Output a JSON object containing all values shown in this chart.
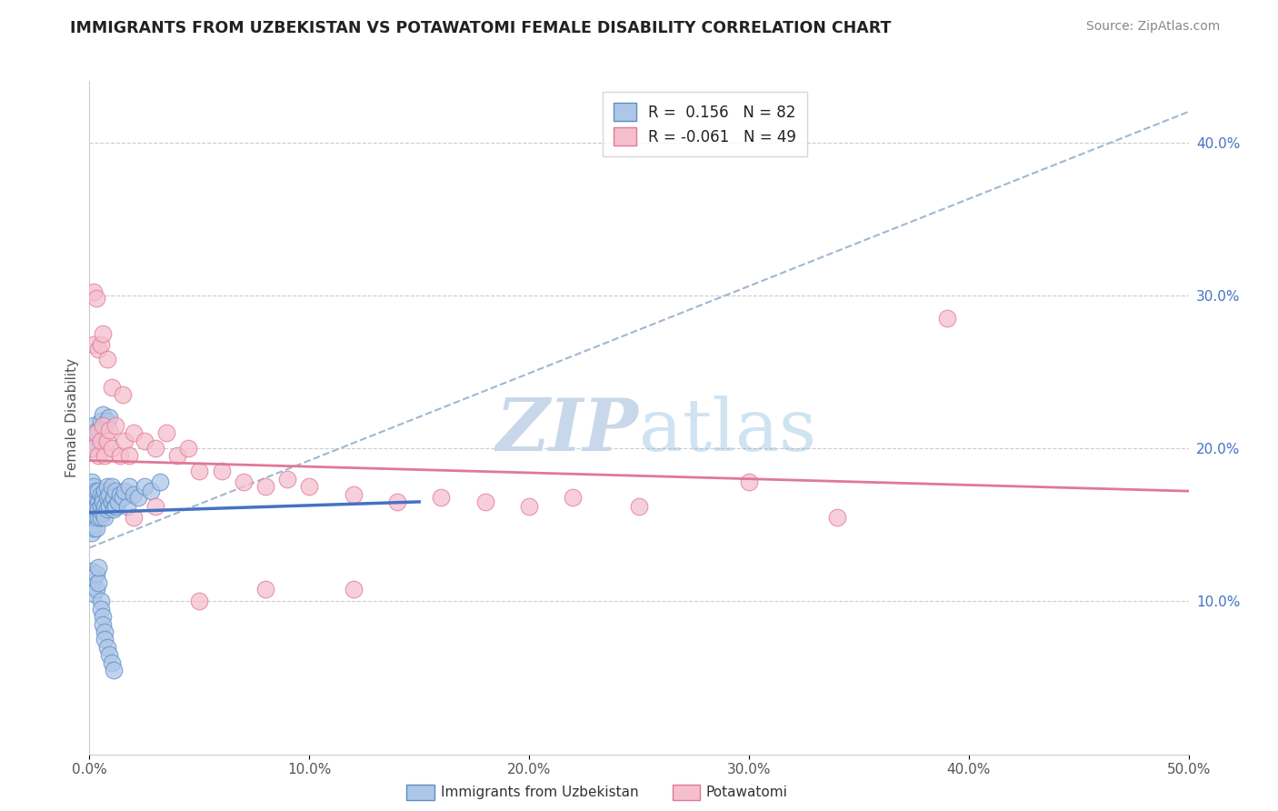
{
  "title": "IMMIGRANTS FROM UZBEKISTAN VS POTAWATOMI FEMALE DISABILITY CORRELATION CHART",
  "source_text": "Source: ZipAtlas.com",
  "ylabel": "Female Disability",
  "xlim": [
    0.0,
    0.5
  ],
  "ylim": [
    0.0,
    0.44
  ],
  "xticks": [
    0.0,
    0.1,
    0.2,
    0.3,
    0.4,
    0.5
  ],
  "xticklabels": [
    "0.0%",
    "10.0%",
    "20.0%",
    "30.0%",
    "40.0%",
    "50.0%"
  ],
  "yticks_right": [
    0.1,
    0.2,
    0.3,
    0.4
  ],
  "yticklabels_right": [
    "10.0%",
    "20.0%",
    "30.0%",
    "40.0%"
  ],
  "R1": 0.156,
  "N1": 82,
  "R2": -0.061,
  "N2": 49,
  "color_blue_fill": "#aec6e8",
  "color_blue_edge": "#5b8ec4",
  "color_pink_fill": "#f5bfce",
  "color_pink_edge": "#e07898",
  "color_blue_line": "#4472c4",
  "color_pink_line": "#e07898",
  "color_dashed": "#a0b8d0",
  "watermark_color": "#c8d8ea",
  "legend_label1": "Immigrants from Uzbekistan",
  "legend_label2": "Potawatomi",
  "blue_trend_x0": 0.0,
  "blue_trend_y0": 0.158,
  "blue_trend_x1": 0.15,
  "blue_trend_y1": 0.165,
  "pink_trend_x0": 0.0,
  "pink_trend_y0": 0.192,
  "pink_trend_x1": 0.5,
  "pink_trend_y1": 0.172,
  "dash_trend_x0": 0.0,
  "dash_trend_y0": 0.135,
  "dash_trend_x1": 0.5,
  "dash_trend_y1": 0.42,
  "uzbek_x": [
    0.001,
    0.001,
    0.001,
    0.001,
    0.001,
    0.001,
    0.001,
    0.001,
    0.002,
    0.002,
    0.002,
    0.002,
    0.002,
    0.002,
    0.003,
    0.003,
    0.003,
    0.003,
    0.003,
    0.004,
    0.004,
    0.004,
    0.004,
    0.005,
    0.005,
    0.005,
    0.006,
    0.006,
    0.006,
    0.007,
    0.007,
    0.007,
    0.008,
    0.008,
    0.008,
    0.009,
    0.009,
    0.01,
    0.01,
    0.011,
    0.011,
    0.012,
    0.012,
    0.013,
    0.014,
    0.015,
    0.016,
    0.017,
    0.018,
    0.02,
    0.022,
    0.025,
    0.028,
    0.032,
    0.001,
    0.001,
    0.002,
    0.002,
    0.003,
    0.003,
    0.004,
    0.004,
    0.005,
    0.005,
    0.006,
    0.006,
    0.007,
    0.007,
    0.008,
    0.009,
    0.01,
    0.011,
    0.001,
    0.001,
    0.002,
    0.002,
    0.003,
    0.004,
    0.005,
    0.006,
    0.007,
    0.008,
    0.009
  ],
  "uzbek_y": [
    0.165,
    0.172,
    0.158,
    0.145,
    0.178,
    0.15,
    0.162,
    0.155,
    0.17,
    0.158,
    0.162,
    0.148,
    0.175,
    0.155,
    0.168,
    0.155,
    0.162,
    0.148,
    0.172,
    0.165,
    0.172,
    0.155,
    0.16,
    0.162,
    0.17,
    0.155,
    0.168,
    0.158,
    0.165,
    0.162,
    0.172,
    0.155,
    0.168,
    0.16,
    0.175,
    0.162,
    0.17,
    0.165,
    0.175,
    0.168,
    0.16,
    0.172,
    0.162,
    0.165,
    0.17,
    0.168,
    0.172,
    0.162,
    0.175,
    0.17,
    0.168,
    0.175,
    0.172,
    0.178,
    0.12,
    0.11,
    0.105,
    0.115,
    0.108,
    0.118,
    0.112,
    0.122,
    0.1,
    0.095,
    0.09,
    0.085,
    0.08,
    0.075,
    0.07,
    0.065,
    0.06,
    0.055,
    0.2,
    0.21,
    0.205,
    0.215,
    0.208,
    0.212,
    0.218,
    0.222,
    0.215,
    0.218,
    0.22
  ],
  "potawatomi_x": [
    0.001,
    0.002,
    0.003,
    0.004,
    0.005,
    0.006,
    0.007,
    0.008,
    0.009,
    0.01,
    0.012,
    0.014,
    0.016,
    0.018,
    0.02,
    0.025,
    0.03,
    0.035,
    0.04,
    0.045,
    0.05,
    0.06,
    0.07,
    0.08,
    0.09,
    0.1,
    0.12,
    0.14,
    0.16,
    0.18,
    0.2,
    0.22,
    0.25,
    0.3,
    0.34,
    0.39,
    0.002,
    0.003,
    0.004,
    0.005,
    0.006,
    0.008,
    0.01,
    0.015,
    0.02,
    0.03,
    0.05,
    0.08,
    0.12
  ],
  "potawatomi_y": [
    0.2,
    0.268,
    0.21,
    0.195,
    0.205,
    0.215,
    0.195,
    0.205,
    0.212,
    0.2,
    0.215,
    0.195,
    0.205,
    0.195,
    0.21,
    0.205,
    0.2,
    0.21,
    0.195,
    0.2,
    0.185,
    0.185,
    0.178,
    0.175,
    0.18,
    0.175,
    0.17,
    0.165,
    0.168,
    0.165,
    0.162,
    0.168,
    0.162,
    0.178,
    0.155,
    0.285,
    0.302,
    0.298,
    0.265,
    0.268,
    0.275,
    0.258,
    0.24,
    0.235,
    0.155,
    0.162,
    0.1,
    0.108,
    0.108
  ]
}
